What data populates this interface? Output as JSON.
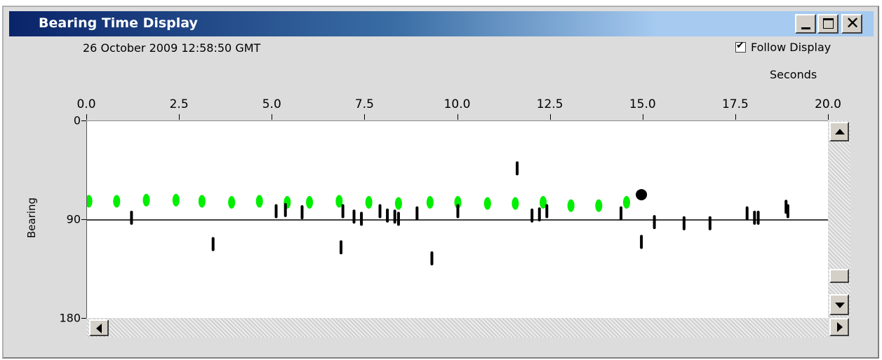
{
  "window": {
    "title": "Bearing Time Display",
    "controls": {
      "minimize": "minimize",
      "maximize": "maximize",
      "close": "close",
      "close_glyph": "✕"
    }
  },
  "header": {
    "timestamp": "26 October 2009 12:58:50 GMT",
    "follow_display": {
      "label": "Follow Display",
      "checked": true,
      "mark": "✔"
    }
  },
  "colors": {
    "accent_green": "#00ee00",
    "track_black": "#000000",
    "title_dark": "#0a246a"
  },
  "chart_data": {
    "type": "scatter",
    "xlabel": "Seconds",
    "ylabel": "Bearing",
    "xlim": [
      0,
      20
    ],
    "ylim": [
      0,
      180
    ],
    "y_inverted": true,
    "x_ticks": [
      "0.0",
      "2.5",
      "5.0",
      "7.5",
      "10.0",
      "12.5",
      "15.0",
      "17.5",
      "20.0"
    ],
    "y_ticks": [
      "0",
      "90",
      "180"
    ],
    "reference_line_y": 90,
    "series": [
      {
        "color": "#00ee00",
        "marker": "ellipse",
        "points": [
          [
            0.05,
            73
          ],
          [
            0.8,
            73
          ],
          [
            1.6,
            72
          ],
          [
            2.4,
            72
          ],
          [
            3.1,
            73
          ],
          [
            3.9,
            74
          ],
          [
            4.65,
            73
          ],
          [
            5.4,
            74
          ],
          [
            6.0,
            74
          ],
          [
            6.8,
            73
          ],
          [
            7.6,
            74
          ],
          [
            8.4,
            75
          ],
          [
            9.25,
            74
          ],
          [
            10.0,
            74
          ],
          [
            10.8,
            75
          ],
          [
            11.55,
            75
          ],
          [
            12.3,
            74
          ],
          [
            13.05,
            77
          ],
          [
            13.8,
            77
          ],
          [
            14.55,
            74
          ]
        ]
      },
      {
        "color": "#000000",
        "marker": "tick",
        "points": [
          [
            1.2,
            88
          ],
          [
            3.4,
            112
          ],
          [
            5.1,
            82
          ],
          [
            5.35,
            81
          ],
          [
            5.8,
            83
          ],
          [
            6.85,
            115
          ],
          [
            6.9,
            82
          ],
          [
            7.2,
            87
          ],
          [
            7.4,
            89
          ],
          [
            7.9,
            82
          ],
          [
            8.1,
            86
          ],
          [
            8.3,
            87
          ],
          [
            8.4,
            89
          ],
          [
            8.9,
            84
          ],
          [
            9.3,
            125
          ],
          [
            10.0,
            82
          ],
          [
            11.6,
            43
          ],
          [
            12.0,
            86
          ],
          [
            12.2,
            85
          ],
          [
            12.4,
            82
          ],
          [
            14.4,
            84
          ],
          [
            14.95,
            110
          ],
          [
            15.3,
            92
          ],
          [
            16.1,
            93
          ],
          [
            16.8,
            93
          ],
          [
            17.8,
            84
          ],
          [
            18.0,
            88
          ],
          [
            18.1,
            88
          ],
          [
            18.85,
            78
          ],
          [
            18.9,
            82
          ]
        ]
      },
      {
        "color": "#000000",
        "marker": "big-dot",
        "points": [
          [
            14.95,
            67
          ]
        ]
      }
    ]
  }
}
